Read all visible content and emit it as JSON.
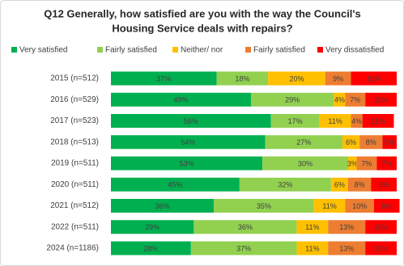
{
  "chart_data": {
    "type": "stacked-bar-horizontal",
    "title": [
      "Q12 Generally, how satisfied are you with the way the Council's",
      "Housing Service deals with repairs?"
    ],
    "categories": [
      "2015 (n=512)",
      "2016 (n=529)",
      "2017 (n=523)",
      "2018 (n=513)",
      "2019 (n=511)",
      "2020 (n=511)",
      "2021 (n=512)",
      "2022 (n=511)",
      "2024 (n=1186)"
    ],
    "xlim": [
      0,
      100
    ],
    "legend": "top",
    "series": [
      {
        "name": "Very satisfied",
        "color": "#00b050",
        "values": [
          37,
          49,
          56,
          54,
          53,
          45,
          36,
          29,
          28
        ],
        "value_labels": [
          "37%",
          "49%",
          "56%",
          "54%",
          "53%",
          "45%",
          "36%",
          "29%",
          "28%"
        ]
      },
      {
        "name": "Fairly satisfied",
        "color": "#92d050",
        "values": [
          18,
          29,
          17,
          27,
          30,
          32,
          35,
          36,
          37
        ],
        "value_labels": [
          "18%",
          "29%",
          "17%",
          "27%",
          "30%",
          "32%",
          "35%",
          "36%",
          "37%"
        ]
      },
      {
        "name": "Neither/ nor",
        "color": "#ffc000",
        "values": [
          20,
          4,
          11,
          6,
          3,
          6,
          11,
          11,
          11
        ],
        "value_labels": [
          "20%",
          "4%",
          "11%",
          "6%",
          "3%",
          "6%",
          "11%",
          "11%",
          "11%"
        ]
      },
      {
        "name": "Fairly satisfied",
        "color": "#ed7d31",
        "values": [
          9,
          7,
          4,
          8,
          7,
          8,
          10,
          13,
          13
        ],
        "value_labels": [
          "9%",
          "7%",
          "4%",
          "8%",
          "7%",
          "8%",
          "10%",
          "13%",
          "13%"
        ]
      },
      {
        "name": "Very dissatisfied",
        "color": "#ff0000",
        "values": [
          16,
          11,
          11,
          5,
          7,
          9,
          9,
          11,
          11
        ],
        "value_labels": [
          "16%",
          "11%",
          "11%",
          "5%",
          "7%",
          "9%",
          "9%",
          "11%",
          "11%"
        ]
      }
    ]
  }
}
